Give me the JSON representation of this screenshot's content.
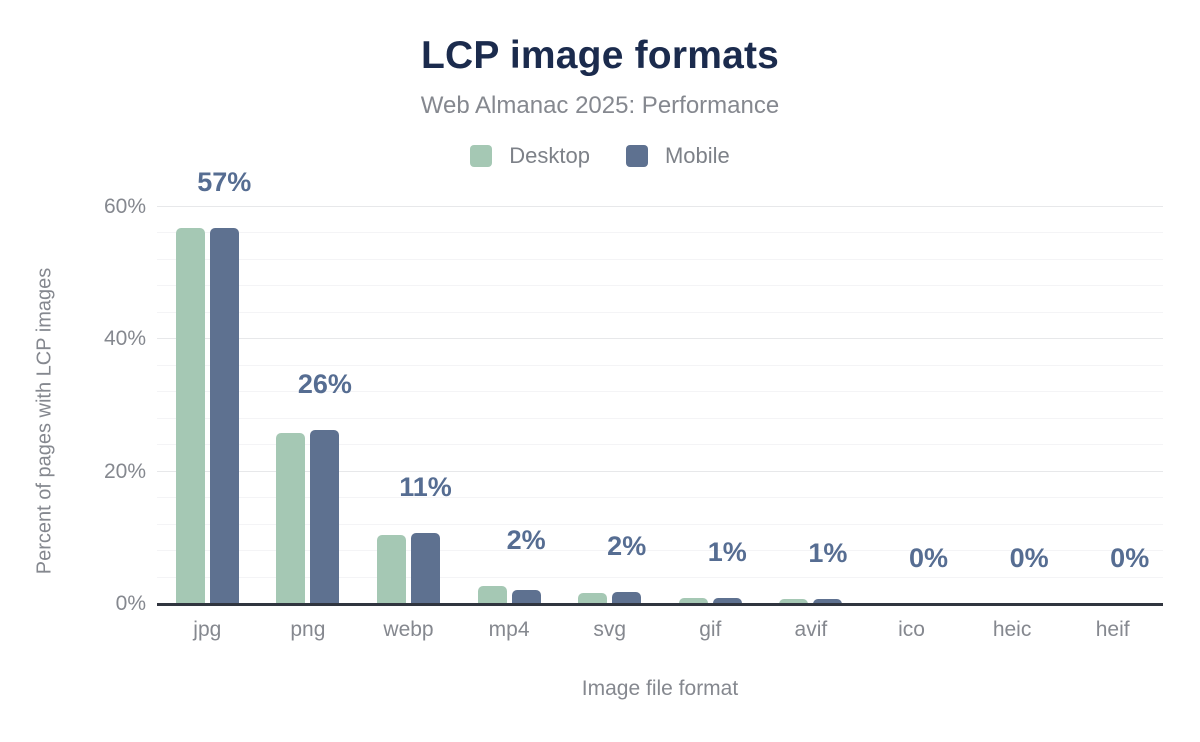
{
  "header": {
    "title": "LCP image formats",
    "subtitle": "Web Almanac 2025: Performance"
  },
  "chart_data": {
    "type": "bar",
    "title": "LCP image formats",
    "subtitle": "Web Almanac 2025: Performance",
    "categories": [
      "jpg",
      "png",
      "webp",
      "mp4",
      "svg",
      "gif",
      "avif",
      "ico",
      "heic",
      "heif"
    ],
    "series": [
      {
        "name": "Desktop",
        "color": "#a5c8b4",
        "values": [
          56.9,
          25.8,
          10.4,
          2.7,
          1.7,
          0.9,
          0.7,
          0,
          0,
          0
        ]
      },
      {
        "name": "Mobile",
        "color": "#5e7190",
        "values": [
          56.9,
          26.3,
          10.7,
          2.1,
          1.8,
          0.9,
          0.7,
          0,
          0,
          0
        ]
      }
    ],
    "data_labels": [
      "57%",
      "26%",
      "11%",
      "2%",
      "2%",
      "1%",
      "1%",
      "0%",
      "0%",
      "0%"
    ],
    "xlabel": "Image file format",
    "ylabel": "Percent of pages with LCP images",
    "ylim": [
      0,
      60
    ],
    "y_ticks": [
      "0%",
      "20%",
      "40%",
      "60%"
    ],
    "y_tick_values": [
      0,
      20,
      40,
      60
    ],
    "grid": {
      "major_step": 20,
      "minor_step": 4,
      "visible": true
    },
    "legend_position": "top",
    "data_label_color": "#566d92",
    "axis_text_color": "#85888f",
    "axis_line_color": "#30353f",
    "title_color": "#1b2b4d"
  }
}
